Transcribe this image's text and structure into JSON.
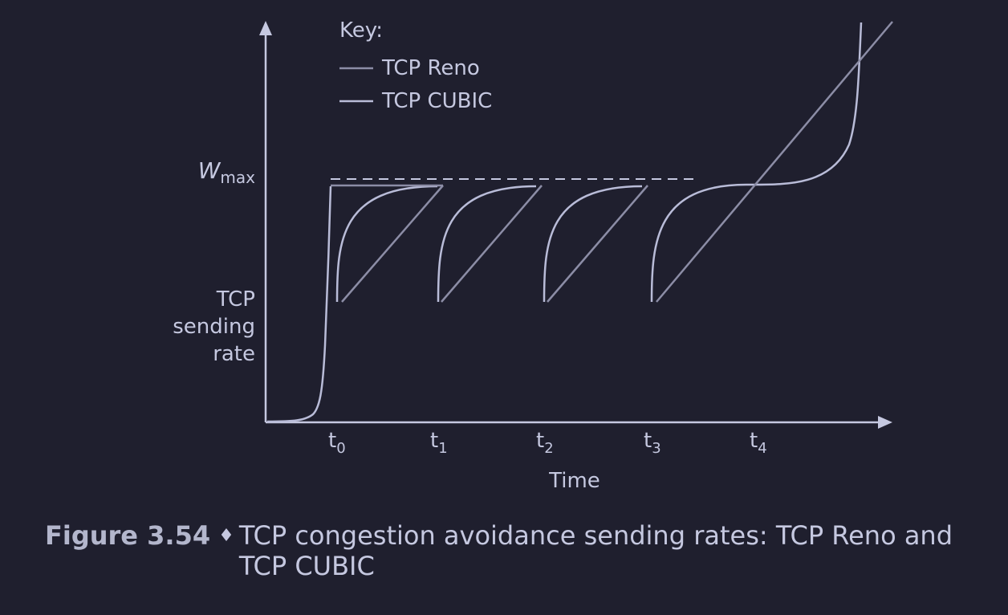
{
  "legend": {
    "title": "Key:",
    "entries": [
      {
        "label": "TCP Reno",
        "color": "#8c8da6"
      },
      {
        "label": "TCP CUBIC",
        "color": "#b9bcd8"
      }
    ]
  },
  "y_axis": {
    "wmax_symbol": "W",
    "wmax_subscript": "max",
    "label_lines": [
      "TCP",
      "sending",
      "rate"
    ]
  },
  "x_axis": {
    "title": "Time",
    "ticks": [
      {
        "base": "t",
        "sub": "0"
      },
      {
        "base": "t",
        "sub": "1"
      },
      {
        "base": "t",
        "sub": "2"
      },
      {
        "base": "t",
        "sub": "3"
      },
      {
        "base": "t",
        "sub": "4"
      }
    ]
  },
  "caption": {
    "label": "Figure 3.54",
    "diamond": "♦",
    "text": "TCP congestion avoidance sending rates: TCP Reno and TCP CUBIC"
  },
  "colors": {
    "background": "#1f1f2e",
    "axis": "#c5c8e0",
    "reno": "#8c8da6",
    "cubic": "#b9bcd8",
    "wmax_dash": "#c5c8e0"
  }
}
